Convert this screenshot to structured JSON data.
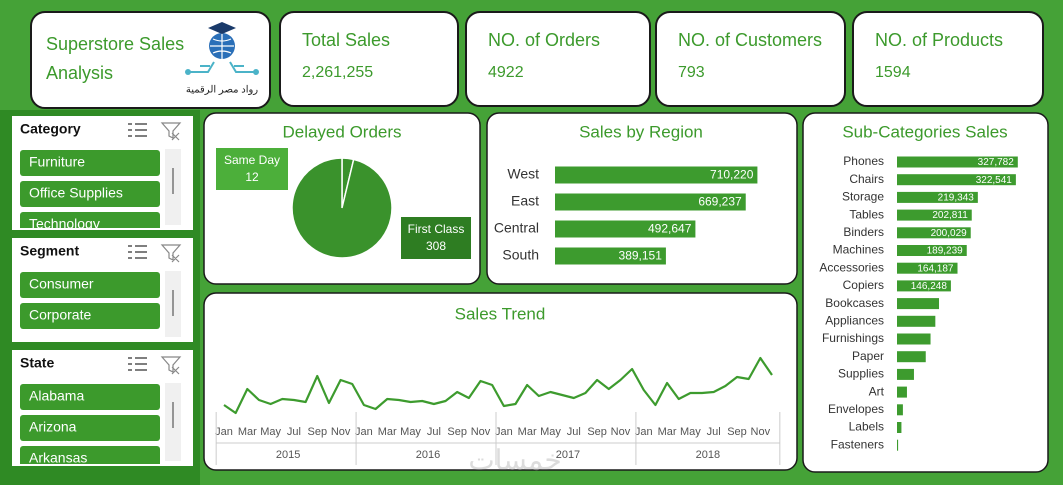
{
  "header": {
    "title": "Superstore Sales Analysis",
    "logo_text": "رواد مصر الرقمية"
  },
  "kpis": [
    {
      "label": "Total Sales",
      "value": "2,261,255"
    },
    {
      "label": "NO. of Orders",
      "value": "4922"
    },
    {
      "label": "NO. of Customers",
      "value": "793"
    },
    {
      "label": "NO. of Products",
      "value": "1594"
    }
  ],
  "slicers": [
    {
      "title": "Category",
      "items": [
        "Furniture",
        "Office Supplies",
        "Technology"
      ]
    },
    {
      "title": "Segment",
      "items": [
        "Consumer",
        "Corporate"
      ]
    },
    {
      "title": "State",
      "items": [
        "Alabama",
        "Arizona",
        "Arkansas"
      ]
    }
  ],
  "chart_data": [
    {
      "type": "pie",
      "title": "Delayed Orders",
      "categories": [
        "Same Day",
        "First Class"
      ],
      "values": [
        12,
        308
      ],
      "colors": [
        "#3a922c",
        "#3a922c"
      ]
    },
    {
      "type": "hbar",
      "title": "Sales by Region",
      "categories": [
        "West",
        "East",
        "Central",
        "South"
      ],
      "values": [
        710220,
        669237,
        492647,
        389151
      ],
      "value_labels": [
        "710,220",
        "669,237",
        "492,647",
        "389,151"
      ],
      "color": "#3d9b2e",
      "xlim": [
        0,
        800000
      ]
    },
    {
      "type": "hbar",
      "title": "Sub-Categories Sales",
      "categories": [
        "Phones",
        "Chairs",
        "Storage",
        "Tables",
        "Binders",
        "Machines",
        "Accessories",
        "Copiers",
        "Bookcases",
        "Appliances",
        "Furnishings",
        "Paper",
        "Supplies",
        "Art",
        "Envelopes",
        "Labels",
        "Fasteners"
      ],
      "values": [
        327782,
        322541,
        219343,
        202811,
        200029,
        189239,
        164187,
        146248,
        114000,
        104000,
        91000,
        78000,
        46000,
        27000,
        16000,
        12000,
        3000
      ],
      "value_labels": [
        "327,782",
        "322,541",
        "219,343",
        "202,811",
        "200,029",
        "189,239",
        "164,187",
        "146,248",
        null,
        null,
        null,
        null,
        null,
        null,
        null,
        null,
        null
      ],
      "color": "#3d9b2e",
      "xlim": [
        0,
        350000
      ]
    },
    {
      "type": "line",
      "title": "Sales Trend",
      "categories": [
        "Jan",
        null,
        "Mar",
        null,
        "May",
        null,
        "Jul",
        null,
        "Sep",
        null,
        "Nov",
        null,
        "Jan",
        null,
        "Mar",
        null,
        "May",
        null,
        "Jul",
        null,
        "Sep",
        null,
        "Nov",
        null,
        "Jan",
        null,
        "Mar",
        null,
        "May",
        null,
        "Jul",
        null,
        "Sep",
        null,
        "Nov",
        null,
        "Jan",
        null,
        "Mar",
        null,
        "May",
        null,
        "Jul",
        null,
        "Sep",
        null,
        "Nov",
        null
      ],
      "x_groups": [
        "2015",
        "2016",
        "2017",
        "2018"
      ],
      "values": [
        20000,
        4000,
        52000,
        30000,
        22000,
        32000,
        30000,
        26000,
        78000,
        24000,
        70000,
        62000,
        20000,
        12000,
        32000,
        30000,
        26000,
        28000,
        22000,
        28000,
        46000,
        34000,
        68000,
        60000,
        18000,
        22000,
        60000,
        38000,
        46000,
        40000,
        34000,
        44000,
        70000,
        52000,
        70000,
        92000,
        50000,
        20000,
        64000,
        32000,
        44000,
        44000,
        46000,
        58000,
        76000,
        72000,
        114000,
        80000
      ],
      "color": "#3d9b2e",
      "ylim": [
        0,
        120000
      ]
    }
  ],
  "watermark": "خمسات"
}
